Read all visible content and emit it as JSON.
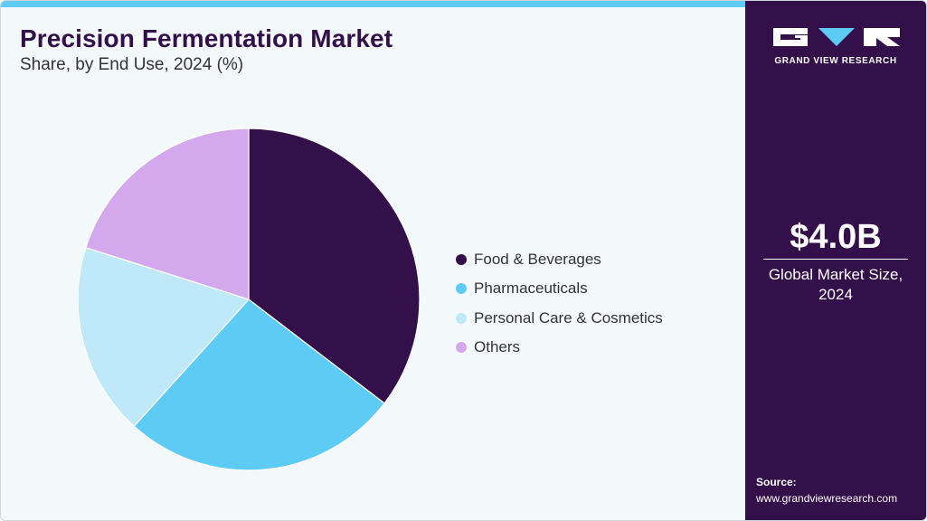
{
  "title": "Precision Fermentation Market",
  "subtitle": "Share, by End Use, 2024 (%)",
  "chart_data": {
    "type": "pie",
    "title": "Precision Fermentation Market",
    "subtitle": "Share, by End Use, 2024 (%)",
    "legend_position": "right",
    "categories": [
      "Food & Beverages",
      "Pharmaceuticals",
      "Personal Care & Cosmetics",
      "Others"
    ],
    "values": [
      35.4,
      26.3,
      18.2,
      20.1
    ],
    "colors": [
      "#34104a",
      "#5ecbf5",
      "#bfe9f8",
      "#d3a8ec"
    ],
    "start_angle_deg": 0,
    "direction": "clockwise"
  },
  "sidebar": {
    "logo_text": "GRAND VIEW RESEARCH",
    "market_value": "$4.0B",
    "market_caption": "Global Market Size, 2024",
    "source_label": "Source:",
    "source_url": "www.grandviewresearch.com"
  }
}
